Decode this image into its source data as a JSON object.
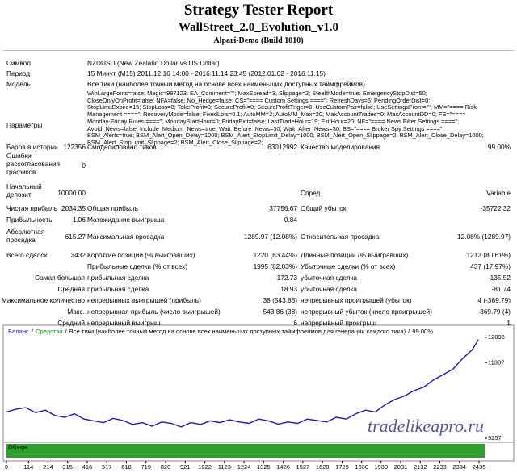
{
  "header": {
    "title": "Strategy Tester Report",
    "expert": "WallStreet_2.0_Evolution_v1.0",
    "server": "Alpari-Demo (Build 1010)"
  },
  "report": {
    "symbol": [
      "Символ",
      "NZDUSD (New Zealand Dollar vs US Dollar)"
    ],
    "period": [
      "Период",
      "15 Минут (M15) 2011.12.16 14:00 - 2016.11.14 23:45 (2012.01.02 - 2016.11.15)"
    ],
    "model": [
      "Модель",
      "Все тики (наиболее точный метод на основе всех наименьших доступных таймфреймов)"
    ],
    "parameters": {
      "label": "Параметры",
      "lines": [
        "WinLargeFonts=false; Magic=987123; EA_Comment=\"\"; MaxSpread=3; Slippage=2; StealthMode=true; EmergencyStopDist=50;",
        "CloseOnlyOnProfit=false; NFA=false; No_Hedge=false; CS=\"==== Custom Settings ====\"; RefreshDays=6; PendingOrderDist=0;",
        "StopLimitExpire=15; StopLoss=0; TakeProfit=0; SecureProfit=0; SecureProfitTriger=0; UseCustomPair=false; UseSettingsFrom=\"\"; MM=\"==== Risk",
        "Management ====\"; RecoveryMode=false; FixedLots=0.1; AutoMM=2; AutoMM_Max=20; MaxAccountTrades=0; MaxAccountDD=0; FE=\"====",
        "Monday-Friday Rules ====\"; MondayStartHour=0; FridayExit=false; LastTradeHour=19; ExitHour=20; NF=\"==== News Filter Settings ====\";",
        "Avoid_News=false; Include_Medium_News=true; Wait_Before_News=30; Wait_After_News=30; BS=\"==== Broker Spy Settings ====\";",
        "BSM_Alerts=true; BSM_Alert_Open_Delay=1000; BSM_Alert_StopLimit_Delay=1000; BSM_Alert_Open_Slippage=2; BSM_Alert_Close_Delay=1000;",
        "BSM_Alert_StopLimit_Slippage=2; BSM_Alert_Close_Slippage=2;"
      ]
    },
    "bars": [
      "Баров в истории",
      "122356",
      "Смоделировано тиков",
      "63012992",
      "Качество моделирования",
      "99.00%"
    ],
    "errors": [
      "Ошибки рассогласования графиков",
      "0"
    ],
    "deposit": [
      "Начальный депозит",
      "10000.00",
      "Спред",
      "Variable"
    ],
    "net": [
      "Чистая прибыль",
      "2034.35",
      "Общая прибыль",
      "37756.67",
      "Общий убыток",
      "-35722.32"
    ],
    "pf": [
      "Прибыльность",
      "1.06",
      "Матожидание выигрыша",
      "0.84"
    ],
    "dd": [
      "Абсолютная просадка",
      "615.27",
      "Максимальная просадка",
      "1289.97 (12.08%)",
      "Относительная просадка",
      "12.08% (1289.97)"
    ],
    "trades": [
      "Всего сделок",
      "2432",
      "Короткие позиции (% выигравших)",
      "1220 (83.44%)",
      "Длинные позиции (% выигравших)",
      "1212 (80.61%)"
    ],
    "wins": [
      "Прибыльные сделки (% от всех)",
      "1995 (82.03%)",
      "Убыточные сделки (% от всех)",
      "437 (17.97%)"
    ],
    "largest": [
      "Самая большая",
      "прибыльная сделка",
      "172.73",
      "убыточная сделка",
      "-135.52"
    ],
    "average": [
      "Средняя",
      "прибыльная сделка",
      "18.93",
      "убыточная сделка",
      "-81.74"
    ],
    "maxcons": [
      "Максимальное количество",
      "непрерывных выигрышей (прибыль)",
      "38 (543.86)",
      "непрерывных проигрышей (убыток)",
      "4 (-369.79)"
    ],
    "maxconsprofit": [
      "Макс.",
      "непрерывная прибыль (число выигрышей)",
      "543.86 (38)",
      "непрерывный убыток (число проигрышей)",
      "-369.79 (4)"
    ],
    "avgcons": [
      "Средний",
      "непрерывный выигрыш",
      "6",
      "непрерывный проигрыш",
      "1"
    ]
  },
  "watermark": "tradelikeapro.ru",
  "chart_data": {
    "type": "line",
    "separator": "/",
    "equity_label": "Средства",
    "equity_color": "#1a8a1a",
    "subtitle": "Все тики (наиболее точный метод на основе всех наименьших доступных таймфреймов для генерации каждого тика)",
    "quality": "99.00%",
    "volume_label": "Объем",
    "volume_color": "#2ea02e",
    "x": [
      0,
      50,
      100,
      150,
      200,
      250,
      300,
      350,
      400,
      450,
      500,
      550,
      600,
      650,
      700,
      750,
      800,
      850,
      900,
      950,
      1000,
      1050,
      1100,
      1150,
      1200,
      1250,
      1300,
      1350,
      1400,
      1450,
      1500,
      1550,
      1600,
      1650,
      1700,
      1750,
      1800,
      1850,
      1900,
      1950,
      2000,
      2050,
      2100,
      2150,
      2200,
      2250,
      2300,
      2350,
      2400,
      2432
    ],
    "series": [
      {
        "name": "Баланс",
        "color": "#1c1ca8",
        "values": [
          10000,
          10080,
          10120,
          9980,
          10050,
          9900,
          9850,
          9950,
          9800,
          9750,
          9700,
          9820,
          9760,
          9650,
          9700,
          9600,
          9720,
          9680,
          9580,
          9700,
          9650,
          9750,
          9700,
          9780,
          9720,
          9680,
          9800,
          9750,
          9660,
          9720,
          9680,
          9800,
          9760,
          9720,
          9850,
          9800,
          9950,
          10050,
          10000,
          10200,
          10350,
          10450,
          10600,
          10700,
          10900,
          11050,
          11200,
          11500,
          11750,
          12034
        ]
      }
    ],
    "xlim": [
      0,
      2464
    ],
    "xticks": [
      0,
      114,
      214,
      315,
      416,
      517,
      618,
      719,
      820,
      921,
      1022,
      1123,
      1224,
      1325,
      1426,
      1527,
      1628,
      1729,
      1830,
      1930,
      2031,
      2132,
      2233,
      2334,
      2435
    ],
    "ylim": [
      9170,
      12210
    ],
    "yticks": [
      12098,
      11387,
      9257
    ]
  }
}
